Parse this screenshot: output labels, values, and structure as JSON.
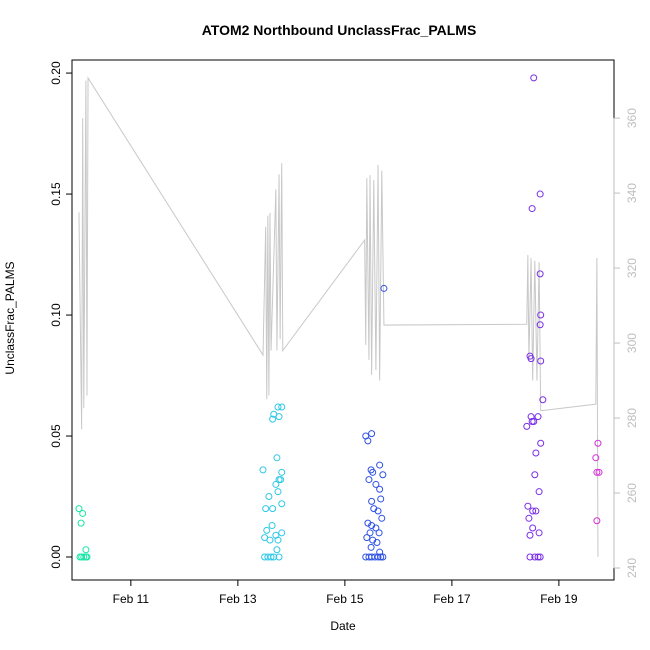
{
  "chart_data": {
    "type": "scatter",
    "title": "ATOM2 Northbound UnclassFrac_PALMS",
    "xlabel": "Date",
    "ylabel": "UnclassFrac_PALMS",
    "xlim": [
      9.9,
      20.03
    ],
    "ylim": [
      -0.0095,
      0.2054
    ],
    "y2lim": [
      236.8,
      375.5
    ],
    "xticks": [
      {
        "value": 11,
        "label": "Feb 11"
      },
      {
        "value": 13,
        "label": "Feb 13"
      },
      {
        "value": 15,
        "label": "Feb 15"
      },
      {
        "value": 17,
        "label": "Feb 17"
      },
      {
        "value": 19,
        "label": "Feb 19"
      }
    ],
    "yticks": [
      {
        "value": 0,
        "label": "0.00"
      },
      {
        "value": 0.05,
        "label": "0.05"
      },
      {
        "value": 0.1,
        "label": "0.10"
      },
      {
        "value": 0.15,
        "label": "0.15"
      },
      {
        "value": 0.2,
        "label": "0.20"
      }
    ],
    "y2ticks": [
      240,
      260,
      280,
      300,
      320,
      340,
      360
    ],
    "y2color": "#bebebe",
    "series": [
      {
        "color": "#19e6a6",
        "x": [
          10.03,
          10.1,
          10.07,
          10.16,
          10.05,
          10.08,
          10.12,
          10.16,
          10.18
        ],
        "values": [
          0.02,
          0.018,
          0.014,
          0.003,
          0,
          0,
          0,
          0,
          0
        ]
      },
      {
        "color": "#2ec8e6",
        "x": [
          13.47,
          13.75,
          13.82,
          13.67,
          13.65,
          13.77,
          13.73,
          13.82,
          13.77,
          13.8,
          13.71,
          13.75,
          13.58,
          13.82,
          13.52,
          13.65,
          13.64,
          13.54,
          13.82,
          13.71,
          13.5,
          13.6,
          13.75,
          13.73,
          13.5,
          13.56,
          13.62,
          13.67,
          13.77
        ],
        "values": [
          0.036,
          0.062,
          0.062,
          0.059,
          0.057,
          0.058,
          0.041,
          0.035,
          0.032,
          0.032,
          0.03,
          0.027,
          0.025,
          0.022,
          0.02,
          0.02,
          0.013,
          0.011,
          0.01,
          0.009,
          0.008,
          0.007,
          0.007,
          0.003,
          0,
          0,
          0,
          0,
          0
        ]
      },
      {
        "color": "#2e52e6",
        "x": [
          15.73,
          15.39,
          15.5,
          15.43,
          15.49,
          15.65,
          15.52,
          15.71,
          15.45,
          15.58,
          15.65,
          15.5,
          15.67,
          15.54,
          15.62,
          15.69,
          15.43,
          15.5,
          15.58,
          15.47,
          15.64,
          15.41,
          15.52,
          15.6,
          15.49,
          15.65,
          15.39,
          15.45,
          15.5,
          15.56,
          15.62,
          15.67,
          15.71
        ],
        "values": [
          0.111,
          0.05,
          0.051,
          0.048,
          0.036,
          0.038,
          0.035,
          0.034,
          0.032,
          0.03,
          0.028,
          0.023,
          0.024,
          0.02,
          0.019,
          0.016,
          0.014,
          0.013,
          0.012,
          0.01,
          0.01,
          0.008,
          0.007,
          0.006,
          0.004,
          0.002,
          0,
          0,
          0,
          0,
          0,
          0,
          0
        ]
      },
      {
        "color": "#7a2ee6",
        "x": [
          18.53,
          18.65,
          18.5,
          18.65,
          18.66,
          18.65,
          18.46,
          18.48,
          18.66,
          18.7,
          18.48,
          18.61,
          18.5,
          18.53,
          18.4,
          18.66,
          18.57,
          18.55,
          18.63,
          18.42,
          18.51,
          18.57,
          18.44,
          18.51,
          18.63,
          18.46,
          18.46,
          18.55,
          18.61,
          18.65
        ],
        "values": [
          0.198,
          0.15,
          0.144,
          0.117,
          0.1,
          0.096,
          0.083,
          0.082,
          0.081,
          0.065,
          0.058,
          0.058,
          0.056,
          0.056,
          0.054,
          0.047,
          0.043,
          0.034,
          0.027,
          0.021,
          0.019,
          0.019,
          0.016,
          0.012,
          0.01,
          0.009,
          0,
          0,
          0,
          0
        ]
      },
      {
        "color": "#d62ed6",
        "x": [
          19.73,
          19.69,
          19.71,
          19.75,
          19.71
        ],
        "values": [
          0.047,
          0.041,
          0.035,
          0.035,
          0.015
        ]
      },
      {
        "color": "#c8c8c8",
        "axis": "y2",
        "x": [
          10.03,
          10.08,
          10.1,
          10.12,
          10.16,
          10.18,
          10.2,
          13.47,
          13.52,
          13.54,
          13.56,
          13.58,
          13.6,
          13.62,
          13.71,
          13.73,
          13.77,
          13.79,
          13.82,
          13.84,
          15.37,
          15.39,
          15.41,
          15.45,
          15.47,
          15.5,
          15.54,
          15.58,
          15.62,
          15.65,
          15.69,
          15.73,
          18.4,
          18.42,
          18.44,
          18.48,
          18.51,
          18.55,
          18.59,
          18.63,
          18.66,
          18.7,
          19.69,
          19.71,
          19.73
        ],
        "values": [
          334.9,
          277,
          360,
          282.7,
          370,
          286,
          370.7,
          296.8,
          331,
          285,
          334,
          286,
          334.7,
          298,
          341,
          298,
          345,
          301,
          348,
          298,
          327.5,
          299.5,
          344,
          295.5,
          344.8,
          291.5,
          343.5,
          292.8,
          347.5,
          290,
          346,
          304.8,
          305,
          323.5,
          295.5,
          322.7,
          290,
          322,
          290,
          321.6,
          282,
          282,
          283.7,
          322.7,
          243
        ]
      }
    ]
  }
}
